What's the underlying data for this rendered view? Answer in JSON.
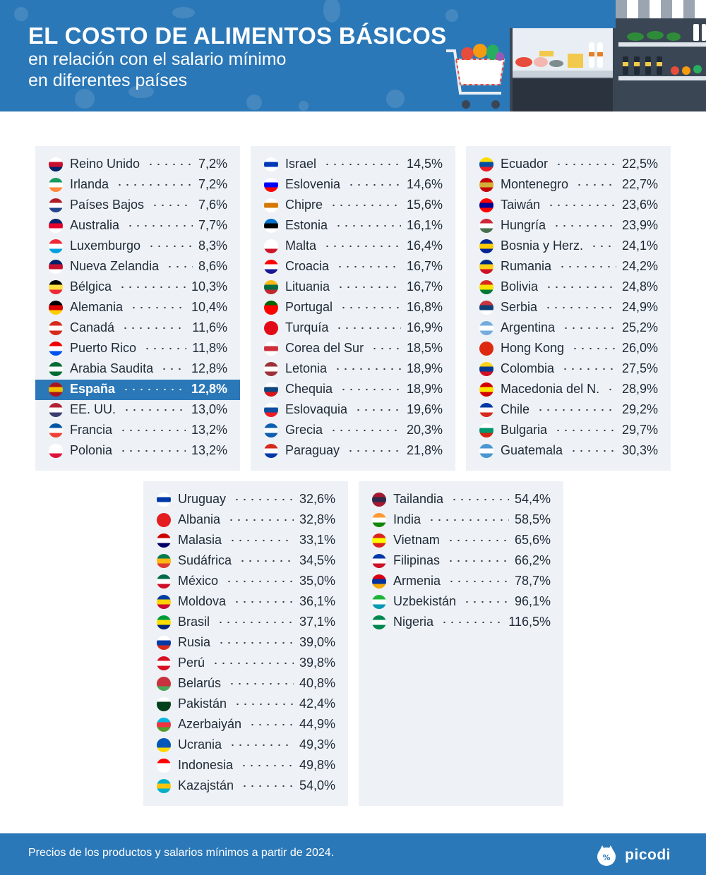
{
  "header": {
    "title": "EL COSTO DE ALIMENTOS BÁSICOS",
    "subtitle_line1": "en relación con el salario mínimo",
    "subtitle_line2": "en diferentes países"
  },
  "panels": [
    {
      "rows": [
        {
          "name": "Reino Unido",
          "value": "7,2%",
          "flag": [
            "#ffffff",
            "#c8102e",
            "#012169"
          ]
        },
        {
          "name": "Irlanda",
          "value": "7,2%",
          "flag": [
            "#169b62",
            "#ffffff",
            "#ff883e"
          ]
        },
        {
          "name": "Países Bajos",
          "value": "7,6%",
          "flag": [
            "#ae1c28",
            "#ffffff",
            "#21468b"
          ]
        },
        {
          "name": "Australia",
          "value": "7,7%",
          "flag": [
            "#012169",
            "#e4002b",
            "#ffffff"
          ]
        },
        {
          "name": "Luxemburgo",
          "value": "8,3%",
          "flag": [
            "#ed2939",
            "#ffffff",
            "#00a1de"
          ]
        },
        {
          "name": "Nueva Zelandia",
          "value": "8,6%",
          "flag": [
            "#012169",
            "#c8102e",
            "#ffffff"
          ]
        },
        {
          "name": "Bélgica",
          "value": "10,3%",
          "flag": [
            "#000000",
            "#fae042",
            "#ed2939"
          ]
        },
        {
          "name": "Alemania",
          "value": "10,4%",
          "flag": [
            "#000000",
            "#dd0000",
            "#ffce00"
          ]
        },
        {
          "name": "Canadá",
          "value": "11,6%",
          "flag": [
            "#d52b1e",
            "#ffffff",
            "#d52b1e"
          ]
        },
        {
          "name": "Puerto Rico",
          "value": "11,8%",
          "flag": [
            "#ed0000",
            "#ffffff",
            "#0050f0"
          ]
        },
        {
          "name": "Arabia Saudita",
          "value": "12,8%",
          "flag": [
            "#006c35",
            "#ffffff",
            "#006c35"
          ]
        },
        {
          "name": "España",
          "value": "12,8%",
          "flag": [
            "#aa151b",
            "#f1bf00",
            "#aa151b"
          ],
          "highlight": true
        },
        {
          "name": "EE. UU.",
          "value": "13,0%",
          "flag": [
            "#b22234",
            "#ffffff",
            "#3c3b6e"
          ]
        },
        {
          "name": "Francia",
          "value": "13,2%",
          "flag": [
            "#0055a4",
            "#ffffff",
            "#ef4135"
          ]
        },
        {
          "name": "Polonia",
          "value": "13,2%",
          "flag": [
            "#ffffff",
            "#ffffff",
            "#dc143c"
          ]
        }
      ]
    },
    {
      "rows": [
        {
          "name": "Israel",
          "value": "14,5%",
          "flag": [
            "#ffffff",
            "#0038b8",
            "#ffffff"
          ]
        },
        {
          "name": "Eslovenia",
          "value": "14,6%",
          "flag": [
            "#ffffff",
            "#0000ff",
            "#ff0000"
          ]
        },
        {
          "name": "Chipre",
          "value": "15,6%",
          "flag": [
            "#ffffff",
            "#d57800",
            "#ffffff"
          ]
        },
        {
          "name": "Estonia",
          "value": "16,1%",
          "flag": [
            "#0072ce",
            "#000000",
            "#ffffff"
          ]
        },
        {
          "name": "Malta",
          "value": "16,4%",
          "flag": [
            "#ffffff",
            "#ffffff",
            "#cf142b"
          ]
        },
        {
          "name": "Croacia",
          "value": "16,7%",
          "flag": [
            "#ff0000",
            "#ffffff",
            "#171796"
          ]
        },
        {
          "name": "Lituania",
          "value": "16,7%",
          "flag": [
            "#fdb913",
            "#006a44",
            "#c1272d"
          ]
        },
        {
          "name": "Portugal",
          "value": "16,8%",
          "flag": [
            "#006600",
            "#ff0000",
            "#ff0000"
          ]
        },
        {
          "name": "Turquía",
          "value": "16,9%",
          "flag": [
            "#e30a17",
            "#e30a17",
            "#e30a17"
          ]
        },
        {
          "name": "Corea del Sur",
          "value": "18,5%",
          "flag": [
            "#ffffff",
            "#cd2e3a",
            "#ffffff"
          ]
        },
        {
          "name": "Letonia",
          "value": "18,9%",
          "flag": [
            "#9e3039",
            "#ffffff",
            "#9e3039"
          ]
        },
        {
          "name": "Chequia",
          "value": "18,9%",
          "flag": [
            "#ffffff",
            "#11457e",
            "#d7141a"
          ]
        },
        {
          "name": "Eslovaquia",
          "value": "19,6%",
          "flag": [
            "#ffffff",
            "#0b4ea2",
            "#ee1c25"
          ]
        },
        {
          "name": "Grecia",
          "value": "20,3%",
          "flag": [
            "#0d5eaf",
            "#ffffff",
            "#0d5eaf"
          ]
        },
        {
          "name": "Paraguay",
          "value": "21,8%",
          "flag": [
            "#d52b1e",
            "#ffffff",
            "#0038a8"
          ]
        }
      ]
    },
    {
      "rows": [
        {
          "name": "Ecuador",
          "value": "22,5%",
          "flag": [
            "#ffdd00",
            "#034ea2",
            "#ed1c24"
          ]
        },
        {
          "name": "Montenegro",
          "value": "22,7%",
          "flag": [
            "#c40308",
            "#d4af37",
            "#c40308"
          ]
        },
        {
          "name": "Taiwán",
          "value": "23,6%",
          "flag": [
            "#fe0000",
            "#000095",
            "#fe0000"
          ]
        },
        {
          "name": "Hungría",
          "value": "23,9%",
          "flag": [
            "#ce2939",
            "#ffffff",
            "#477050"
          ]
        },
        {
          "name": "Bosnia y Herz.",
          "value": "24,1%",
          "flag": [
            "#002395",
            "#fecb00",
            "#002395"
          ]
        },
        {
          "name": "Rumania",
          "value": "24,2%",
          "flag": [
            "#002b7f",
            "#fcd116",
            "#ce1126"
          ]
        },
        {
          "name": "Bolivia",
          "value": "24,8%",
          "flag": [
            "#d52b1e",
            "#f9e300",
            "#007934"
          ]
        },
        {
          "name": "Serbia",
          "value": "24,9%",
          "flag": [
            "#c6363c",
            "#0c4076",
            "#ffffff"
          ]
        },
        {
          "name": "Argentina",
          "value": "25,2%",
          "flag": [
            "#74acdf",
            "#ffffff",
            "#74acdf"
          ]
        },
        {
          "name": "Hong Kong",
          "value": "26,0%",
          "flag": [
            "#de2910",
            "#de2910",
            "#de2910"
          ]
        },
        {
          "name": "Colombia",
          "value": "27,5%",
          "flag": [
            "#fcd116",
            "#003893",
            "#ce1126"
          ]
        },
        {
          "name": "Macedonia del N.",
          "value": "28,9%",
          "flag": [
            "#d20000",
            "#ffe600",
            "#d20000"
          ]
        },
        {
          "name": "Chile",
          "value": "29,2%",
          "flag": [
            "#0039a6",
            "#ffffff",
            "#d52b1e"
          ]
        },
        {
          "name": "Bulgaria",
          "value": "29,7%",
          "flag": [
            "#ffffff",
            "#00966e",
            "#d62612"
          ]
        },
        {
          "name": "Guatemala",
          "value": "30,3%",
          "flag": [
            "#4997d0",
            "#ffffff",
            "#4997d0"
          ]
        }
      ]
    },
    {
      "rows": [
        {
          "name": "Uruguay",
          "value": "32,6%",
          "flag": [
            "#ffffff",
            "#0038a8",
            "#ffffff"
          ]
        },
        {
          "name": "Albania",
          "value": "32,8%",
          "flag": [
            "#e41e20",
            "#e41e20",
            "#e41e20"
          ]
        },
        {
          "name": "Malasia",
          "value": "33,1%",
          "flag": [
            "#cc0001",
            "#ffffff",
            "#010066"
          ]
        },
        {
          "name": "Sudáfrica",
          "value": "34,5%",
          "flag": [
            "#007a4d",
            "#ffb612",
            "#de3831"
          ]
        },
        {
          "name": "México",
          "value": "35,0%",
          "flag": [
            "#006847",
            "#ffffff",
            "#ce1126"
          ]
        },
        {
          "name": "Moldova",
          "value": "36,1%",
          "flag": [
            "#003da5",
            "#ffd200",
            "#cc092f"
          ]
        },
        {
          "name": "Brasil",
          "value": "37,1%",
          "flag": [
            "#009c3b",
            "#ffdf00",
            "#002776"
          ]
        },
        {
          "name": "Rusia",
          "value": "39,0%",
          "flag": [
            "#ffffff",
            "#0039a6",
            "#d52b1e"
          ]
        },
        {
          "name": "Perú",
          "value": "39,8%",
          "flag": [
            "#d91023",
            "#ffffff",
            "#d91023"
          ]
        },
        {
          "name": "Belarús",
          "value": "40,8%",
          "flag": [
            "#c8313e",
            "#c8313e",
            "#4aa657"
          ]
        },
        {
          "name": "Pakistán",
          "value": "42,4%",
          "flag": [
            "#ffffff",
            "#01411c",
            "#01411c"
          ]
        },
        {
          "name": "Azerbaiyán",
          "value": "44,9%",
          "flag": [
            "#00b5e2",
            "#ef3340",
            "#509e2f"
          ]
        },
        {
          "name": "Ucrania",
          "value": "49,3%",
          "flag": [
            "#0057b7",
            "#0057b7",
            "#ffd700"
          ]
        },
        {
          "name": "Indonesia",
          "value": "49,8%",
          "flag": [
            "#ff0000",
            "#ffffff",
            "#ffffff"
          ]
        },
        {
          "name": "Kazajstán",
          "value": "54,0%",
          "flag": [
            "#00afca",
            "#fec50c",
            "#00afca"
          ]
        }
      ]
    },
    {
      "rows": [
        {
          "name": "Tailandia",
          "value": "54,4%",
          "flag": [
            "#a51931",
            "#2d2a4a",
            "#a51931"
          ]
        },
        {
          "name": "India",
          "value": "58,5%",
          "flag": [
            "#ff9933",
            "#ffffff",
            "#138808"
          ]
        },
        {
          "name": "Vietnam",
          "value": "65,6%",
          "flag": [
            "#da251d",
            "#ffff00",
            "#da251d"
          ]
        },
        {
          "name": "Filipinas",
          "value": "66,2%",
          "flag": [
            "#0038a8",
            "#ffffff",
            "#ce1126"
          ]
        },
        {
          "name": "Armenia",
          "value": "78,7%",
          "flag": [
            "#d90012",
            "#0033a0",
            "#f2a800"
          ]
        },
        {
          "name": "Uzbekistán",
          "value": "96,1%",
          "flag": [
            "#1eb53a",
            "#ffffff",
            "#0099b5"
          ]
        },
        {
          "name": "Nigeria",
          "value": "116,5%",
          "flag": [
            "#008751",
            "#ffffff",
            "#008751"
          ]
        }
      ]
    }
  ],
  "footer": {
    "note": "Precios de los productos y salarios mínimos a partir de 2024.",
    "logo": "picodi"
  },
  "colors": {
    "brand_blue": "#2b78b8",
    "panel_bg": "#eef2f6",
    "text": "#1f2a36"
  }
}
